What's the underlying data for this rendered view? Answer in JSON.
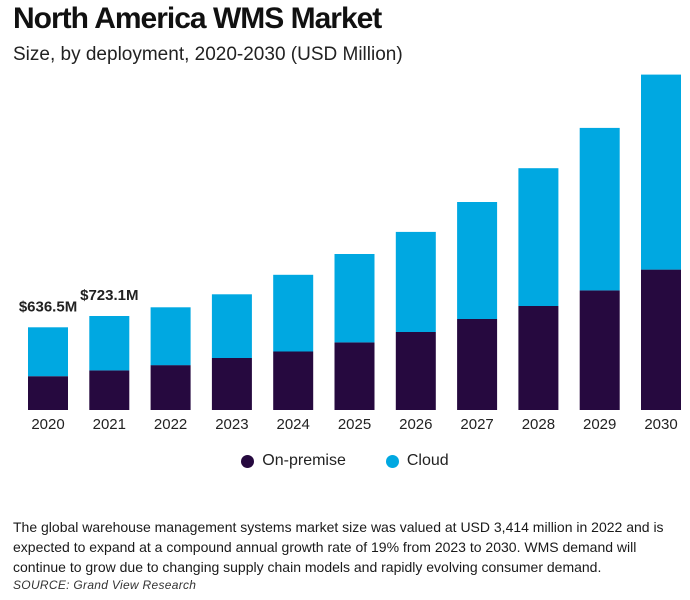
{
  "chart_data": {
    "type": "bar",
    "stacked": true,
    "title": "North America WMS Market",
    "subtitle": "Size, by deployment, 2020-2030 (USD Million)",
    "categories": [
      "2020",
      "2021",
      "2022",
      "2023",
      "2024",
      "2025",
      "2026",
      "2027",
      "2028",
      "2029",
      "2030"
    ],
    "series": [
      {
        "name": "On-premise",
        "color": "#26093f",
        "values": [
          260,
          305,
          345,
          400,
          450,
          520,
          600,
          700,
          800,
          920,
          1080
        ]
      },
      {
        "name": "Cloud",
        "color": "#00a8e1",
        "values": [
          376.5,
          418.1,
          445,
          490,
          590,
          680,
          770,
          900,
          1060,
          1250,
          1500
        ]
      }
    ],
    "annotations": [
      {
        "category": "2020",
        "text": "$636.5M"
      },
      {
        "category": "2021",
        "text": "$723.1M"
      }
    ],
    "ylim": [
      0,
      2600
    ],
    "xlabel": "",
    "ylabel": "",
    "legend_position": "bottom-center"
  },
  "legend": [
    {
      "label": "On-premise",
      "color": "#26093f"
    },
    {
      "label": "Cloud",
      "color": "#00a8e1"
    }
  ],
  "description": "The global warehouse management systems market size was valued at USD 3,414 million in 2022 and is expected to expand at a compound annual growth rate of 19% from 2023 to 2030. WMS demand will continue to grow due to changing supply chain models and rapidly evolving consumer demand.",
  "source": "SOURCE: Grand View Research"
}
